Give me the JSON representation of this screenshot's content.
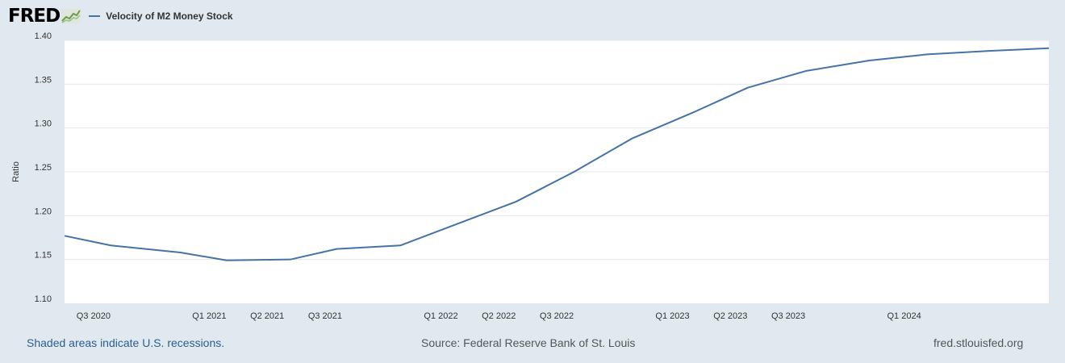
{
  "header": {
    "logo_text": "FRED",
    "logo_icon": "fred-chart-icon"
  },
  "footer": {
    "recession_note": "Shaded areas indicate U.S. recessions.",
    "source": "Source: Federal Reserve Bank of St. Louis",
    "site": "fred.stlouisfed.org"
  },
  "colors": {
    "series": "#4572a7",
    "page_background": "#e1e9f0",
    "plot_background": "#ffffff",
    "gridline": "#e6e6e6"
  },
  "chart_data": {
    "type": "line",
    "title": "",
    "xlabel": "",
    "ylabel": "Ratio",
    "ylim": [
      1.1,
      1.4
    ],
    "yticks": [
      "1.10",
      "1.15",
      "1.20",
      "1.25",
      "1.30",
      "1.35",
      "1.40"
    ],
    "xlim": [
      2020.375,
      2024.625
    ],
    "xticks": [
      {
        "label": "Q3 2020",
        "x": 2020.5
      },
      {
        "label": "Q1 2021",
        "x": 2021.0
      },
      {
        "label": "Q2 2021",
        "x": 2021.25
      },
      {
        "label": "Q3 2021",
        "x": 2021.5
      },
      {
        "label": "Q1 2022",
        "x": 2022.0
      },
      {
        "label": "Q2 2022",
        "x": 2022.25
      },
      {
        "label": "Q3 2022",
        "x": 2022.5
      },
      {
        "label": "Q1 2023",
        "x": 2023.0
      },
      {
        "label": "Q2 2023",
        "x": 2023.25
      },
      {
        "label": "Q3 2023",
        "x": 2023.5
      },
      {
        "label": "Q1 2024",
        "x": 2024.0
      }
    ],
    "legend": "top-left",
    "series": [
      {
        "name": "Velocity of M2 Money Stock",
        "x": [
          2020.375,
          2020.575,
          2020.875,
          2021.075,
          2021.35,
          2021.55,
          2021.825,
          2022.075,
          2022.325,
          2022.575,
          2022.825,
          2023.1,
          2023.325,
          2023.575,
          2023.85,
          2024.1,
          2024.375,
          2024.625
        ],
        "values": [
          1.177,
          1.166,
          1.158,
          1.149,
          1.15,
          1.162,
          1.166,
          1.191,
          1.216,
          1.25,
          1.288,
          1.319,
          1.346,
          1.365,
          1.377,
          1.384,
          1.388,
          1.391
        ]
      }
    ]
  }
}
